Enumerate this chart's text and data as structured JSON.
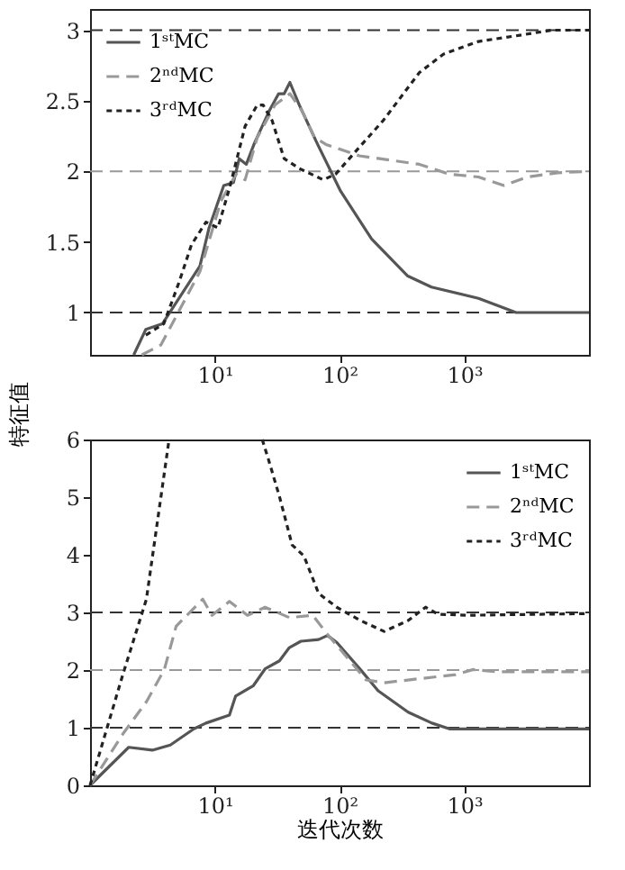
{
  "chart_data": [
    {
      "type": "line",
      "ylabel": "特征值",
      "xlim": [
        1,
        10000
      ],
      "ylim": [
        0.7,
        3.15
      ],
      "log": "x",
      "grid": false,
      "legend": "top left",
      "xticks": [
        {
          "value": 10,
          "label": "10¹"
        },
        {
          "value": 100,
          "label": "10²"
        },
        {
          "value": 1000,
          "label": "10³"
        }
      ],
      "yticks": [
        1,
        1.5,
        2,
        2.5,
        3
      ],
      "series": [
        {
          "name": "1ˢᵗMC",
          "color": "#555555",
          "line_style": "solid",
          "x": [
            2.24,
            2.8,
            3.8,
            7.6,
            9,
            11.8,
            14.1,
            15.7,
            17.9,
            20.8,
            27.4,
            32.5,
            36,
            40,
            47.6,
            66,
            102,
            181,
            350,
            546,
            1300,
            1850,
            2600,
            10000
          ],
          "values": [
            0.7,
            0.88,
            0.92,
            1.33,
            1.6,
            1.9,
            1.92,
            2.09,
            2.05,
            2.2,
            2.43,
            2.55,
            2.55,
            2.63,
            2.47,
            2.2,
            1.86,
            1.52,
            1.26,
            1.18,
            1.1,
            1.05,
            1.0,
            1.0
          ]
        },
        {
          "name": "2ⁿᵈMC",
          "color": "#999999",
          "line_style": "dashed",
          "x": [
            2.6,
            3.7,
            7.6,
            11.2,
            14.8,
            17.5,
            21.9,
            30.4,
            40,
            50,
            63,
            78,
            144,
            437,
            760,
            1300,
            2080,
            3200,
            5600,
            10000
          ],
          "values": [
            0.7,
            0.77,
            1.29,
            1.79,
            1.98,
            1.94,
            2.24,
            2.47,
            2.55,
            2.43,
            2.24,
            2.19,
            2.11,
            2.05,
            1.98,
            1.96,
            1.9,
            1.96,
            1.99,
            2.0
          ]
        },
        {
          "name": "3ʳᵈMC",
          "color": "#222222",
          "line_style": "dotted",
          "x": [
            2.8,
            3.9,
            5.2,
            6.5,
            8.5,
            10.6,
            13.3,
            17.5,
            21.9,
            24.4,
            28.8,
            36,
            47.6,
            74,
            93,
            144,
            224,
            437,
            680,
            1300,
            2600,
            5000,
            10000
          ],
          "values": [
            0.84,
            0.92,
            1.22,
            1.48,
            1.64,
            1.6,
            1.9,
            2.32,
            2.47,
            2.47,
            2.36,
            2.09,
            2.02,
            1.94,
            1.98,
            2.17,
            2.36,
            2.7,
            2.83,
            2.92,
            2.96,
            3.0,
            3.0
          ]
        }
      ],
      "ref_lines": [
        {
          "axis": "y",
          "value": 1,
          "color": "#333333",
          "line_style": "dashed"
        },
        {
          "axis": "y",
          "value": 2,
          "color": "#999999",
          "line_style": "dashed"
        },
        {
          "axis": "y",
          "value": 3,
          "color": "#333333",
          "line_style": "dashed"
        }
      ]
    },
    {
      "type": "line",
      "xlabel": "迭代次数",
      "xlim": [
        1,
        10000
      ],
      "ylim": [
        0,
        6
      ],
      "log": "x",
      "grid": false,
      "legend": "top right",
      "xticks": [
        {
          "value": 10,
          "label": "10¹"
        },
        {
          "value": 100,
          "label": "10²"
        },
        {
          "value": 1000,
          "label": "10³"
        }
      ],
      "yticks": [
        0,
        1,
        2,
        3,
        4,
        5,
        6
      ],
      "series": [
        {
          "name": "1ˢᵗMC",
          "color": "#555555",
          "line_style": "solid",
          "x": [
            1,
            2.04,
            3.16,
            4.4,
            6.8,
            8.5,
            13.1,
            14.7,
            20.4,
            25.3,
            33,
            39.6,
            49,
            68,
            80,
            95,
            147,
            204,
            355,
            550,
            760,
            10000
          ],
          "values": [
            0,
            0.66,
            0.61,
            0.7,
            0.98,
            1.08,
            1.22,
            1.55,
            1.73,
            2.02,
            2.16,
            2.39,
            2.5,
            2.53,
            2.6,
            2.48,
            2.01,
            1.64,
            1.27,
            1.08,
            0.98,
            0.98
          ]
        },
        {
          "name": "2ⁿᵈMC",
          "color": "#999999",
          "line_style": "dashed",
          "x": [
            1,
            1.83,
            2.83,
            3.94,
            4.9,
            8,
            9.5,
            13.1,
            18.3,
            25.3,
            39.6,
            61,
            80,
            117,
            163,
            228,
            437,
            850,
            1180,
            1820,
            10000
          ],
          "values": [
            0,
            0.89,
            1.45,
            2.01,
            2.76,
            3.23,
            2.95,
            3.19,
            2.95,
            3.09,
            2.91,
            2.95,
            2.62,
            2.2,
            1.83,
            1.78,
            1.85,
            1.92,
            2.01,
            1.97,
            1.97
          ]
        },
        {
          "name": "3ʳᵈMC",
          "color": "#222222",
          "line_style": "dotted",
          "x": [
            1,
            1.83,
            2.83,
            4.3,
            10,
            24,
            26.8,
            33,
            41.7,
            51.8,
            68,
            95,
            147,
            228,
            355,
            490,
            614,
            1050,
            10000
          ],
          "values": [
            0,
            1.92,
            3.23,
            6,
            null,
            6,
            5.67,
            5.01,
            4.17,
            3.98,
            3.33,
            3.09,
            2.86,
            2.67,
            2.86,
            3.09,
            2.97,
            2.95,
            2.98
          ]
        }
      ],
      "ref_lines": [
        {
          "axis": "y",
          "value": 1,
          "color": "#333333",
          "line_style": "dashed"
        },
        {
          "axis": "y",
          "value": 2,
          "color": "#999999",
          "line_style": "dashed"
        },
        {
          "axis": "y",
          "value": 3,
          "color": "#333333",
          "line_style": "dashed"
        }
      ]
    }
  ]
}
